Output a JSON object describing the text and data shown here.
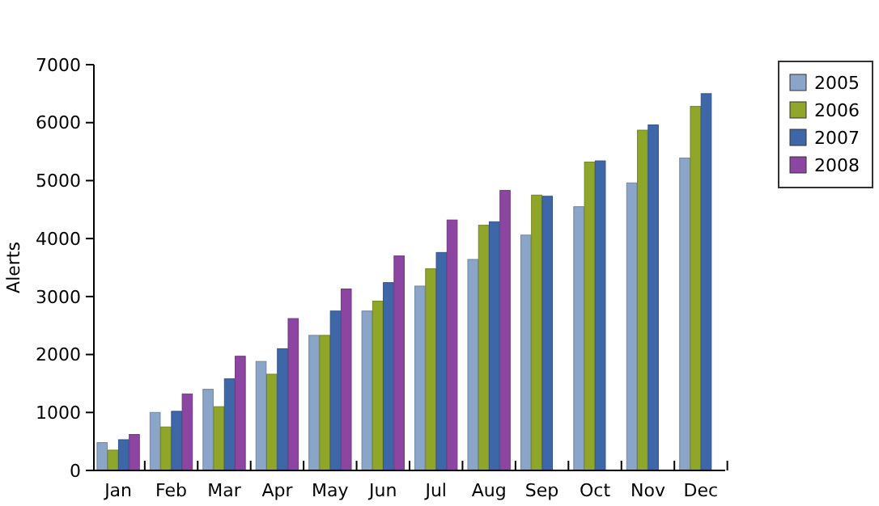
{
  "chart_data": {
    "type": "bar",
    "ylabel": "Alerts",
    "categories": [
      "Jan",
      "Feb",
      "Mar",
      "Apr",
      "May",
      "Jun",
      "Jul",
      "Aug",
      "Sep",
      "Oct",
      "Nov",
      "Dec"
    ],
    "series": [
      {
        "name": "2005",
        "color": "#8aa5c8",
        "values": [
          480,
          1000,
          1400,
          1880,
          2330,
          2750,
          3180,
          3640,
          4060,
          4550,
          4960,
          5390
        ]
      },
      {
        "name": "2006",
        "color": "#8fa62a",
        "values": [
          350,
          750,
          1100,
          1660,
          2330,
          2920,
          3480,
          4230,
          4750,
          5320,
          5870,
          6280
        ]
      },
      {
        "name": "2007",
        "color": "#3e67a8",
        "values": [
          530,
          1020,
          1580,
          2100,
          2750,
          3240,
          3760,
          4290,
          4730,
          5340,
          5960,
          6500
        ]
      },
      {
        "name": "2008",
        "color": "#8c45a0",
        "values": [
          620,
          1320,
          1970,
          2620,
          3130,
          3700,
          4320,
          4830,
          null,
          null,
          null,
          null
        ]
      }
    ],
    "ylim": [
      0,
      7000
    ],
    "yticks": [
      0,
      1000,
      2000,
      3000,
      4000,
      5000,
      6000,
      7000
    ],
    "grid": false,
    "legend": "top right"
  }
}
